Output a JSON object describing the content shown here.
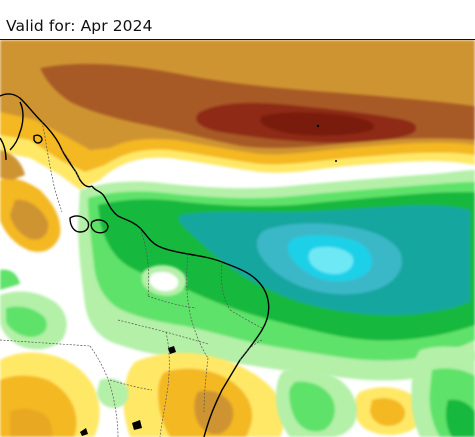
{
  "header": {
    "valid_label": "Valid for: Apr 2024"
  },
  "map": {
    "type": "precipitation-anomaly-forecast",
    "region": "Northern South America / Brazil Nordeste",
    "palette": {
      "dry_strong": "#8e2a12",
      "dry_moderate": "#a85a25",
      "dry_mild": "#cf9430",
      "dry_weak": "#f4b820",
      "dry_faint": "#ffe866",
      "neutral": "#ffffff",
      "wet_faint": "#b4f0a8",
      "wet_weak": "#5ee26a",
      "wet_mild": "#12b83c",
      "wet_moderate": "#14a6a0",
      "wet_strong": "#1ad0e8",
      "coastline": "#000000",
      "borders": "#555555"
    },
    "features": [
      "dry-anomaly-band-north",
      "wet-anomaly-band-equatorial",
      "wet-core-atlantic",
      "dry-patches-south"
    ]
  }
}
